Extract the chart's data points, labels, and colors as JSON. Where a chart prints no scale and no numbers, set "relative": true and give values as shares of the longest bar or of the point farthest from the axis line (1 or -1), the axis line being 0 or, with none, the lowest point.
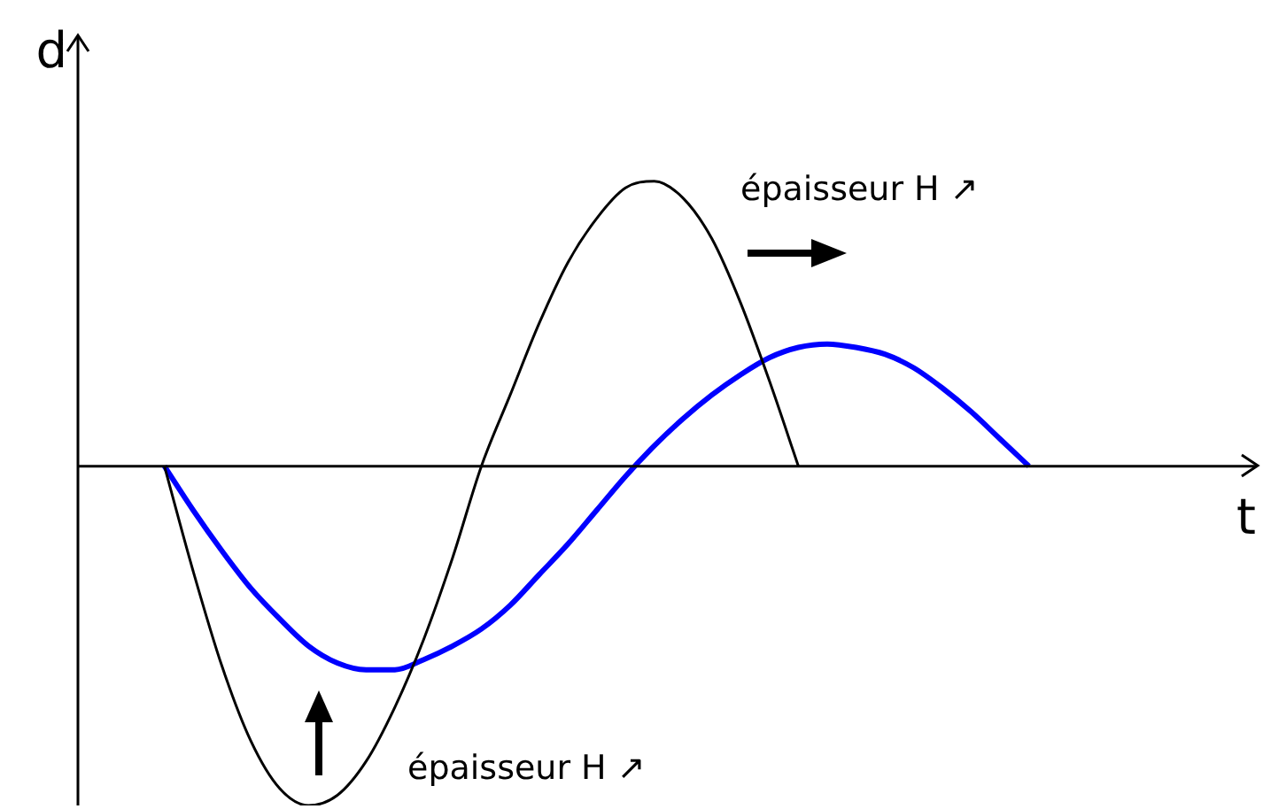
{
  "chart_data": {
    "type": "line",
    "relative": true,
    "xlabel": "t",
    "ylabel": "d",
    "marker": "none",
    "legend": false,
    "categories": [
      null,
      null,
      null,
      null,
      null,
      null,
      null,
      null,
      null,
      null,
      null,
      null,
      null,
      null,
      null,
      null,
      null,
      null,
      null,
      null,
      null,
      null,
      null,
      null,
      null,
      null,
      null,
      null,
      null,
      null,
      null,
      null,
      null,
      null,
      null,
      null,
      null,
      null,
      null,
      null,
      null,
      null
    ],
    "series": [
      {
        "color": "#000000",
        "values": [
          null,
          null,
          null,
          0,
          -0.31,
          -0.59,
          -0.81,
          -0.95,
          -1,
          -0.97,
          -0.87,
          -0.71,
          -0.51,
          -0.27,
          0,
          0.21,
          0.42,
          0.6,
          0.73,
          0.82,
          0.84,
          0.79,
          0.67,
          0.48,
          0.25,
          0,
          null,
          null,
          null,
          null,
          null,
          null,
          null,
          null,
          null,
          null,
          null,
          null,
          null,
          null,
          null,
          null
        ]
      },
      {
        "color": "#0000ff",
        "values": [
          null,
          null,
          null,
          0,
          -0.13,
          -0.25,
          -0.36,
          -0.45,
          -0.53,
          -0.58,
          -0.6,
          -0.6,
          -0.57,
          -0.53,
          -0.48,
          -0.41,
          -0.32,
          -0.23,
          -0.13,
          -0.03,
          0.06,
          0.14,
          0.21,
          0.27,
          0.32,
          0.35,
          0.36,
          0.35,
          0.33,
          0.29,
          0.23,
          0.16,
          0.08,
          0,
          null,
          null,
          null,
          null,
          null,
          null,
          null,
          null
        ]
      }
    ],
    "annotations": [
      "épaisseur H ↗",
      "épaisseur H ↗"
    ]
  }
}
